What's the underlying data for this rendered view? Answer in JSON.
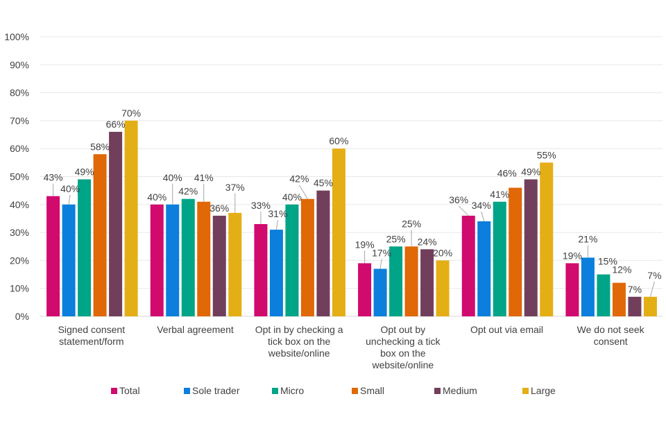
{
  "chart_data": {
    "type": "bar",
    "title": "",
    "xlabel": "",
    "ylabel": "",
    "ylim": [
      0,
      100
    ],
    "y_ticks": [
      "0%",
      "10%",
      "20%",
      "30%",
      "40%",
      "50%",
      "60%",
      "70%",
      "80%",
      "90%",
      "100%"
    ],
    "grid": true,
    "legend_position": "bottom",
    "categories": [
      [
        "Signed consent",
        "statement/form"
      ],
      [
        "Verbal agreement"
      ],
      [
        "Opt in by checking a",
        "tick box on the",
        "website/online"
      ],
      [
        "Opt out by",
        "unchecking a tick",
        "box on the",
        "website/online"
      ],
      [
        "Opt out via email"
      ],
      [
        "We do not seek",
        "consent"
      ]
    ],
    "series": [
      {
        "name": "Total",
        "color": "#D10A6E",
        "values": [
          43,
          40,
          33,
          19,
          36,
          19
        ],
        "labels": [
          "43%",
          "40%",
          "33%",
          "19%",
          "36%",
          "19%"
        ]
      },
      {
        "name": "Sole trader",
        "color": "#0B7FDB",
        "values": [
          40,
          40,
          31,
          17,
          34,
          21
        ],
        "labels": [
          "40%",
          "40%",
          "31%",
          "17%",
          "34%",
          "21%"
        ]
      },
      {
        "name": "Micro",
        "color": "#00A486",
        "values": [
          49,
          42,
          40,
          25,
          41,
          15
        ],
        "labels": [
          "49%",
          "42%",
          "40%",
          "25%",
          "41%",
          "15%"
        ]
      },
      {
        "name": "Small",
        "color": "#E06806",
        "values": [
          58,
          41,
          42,
          25,
          46,
          12
        ],
        "labels": [
          "58%",
          "41%",
          "42%",
          "25%",
          "46%",
          "12%"
        ]
      },
      {
        "name": "Medium",
        "color": "#713F5C",
        "values": [
          66,
          36,
          45,
          24,
          49,
          7
        ],
        "labels": [
          "66%",
          "36%",
          "45%",
          "24%",
          "49%",
          "7%"
        ]
      },
      {
        "name": "Large",
        "color": "#E4AE15",
        "values": [
          70,
          37,
          60,
          20,
          55,
          7
        ],
        "labels": [
          "70%",
          "37%",
          "60%",
          "20%",
          "55%",
          "7%"
        ]
      }
    ]
  }
}
